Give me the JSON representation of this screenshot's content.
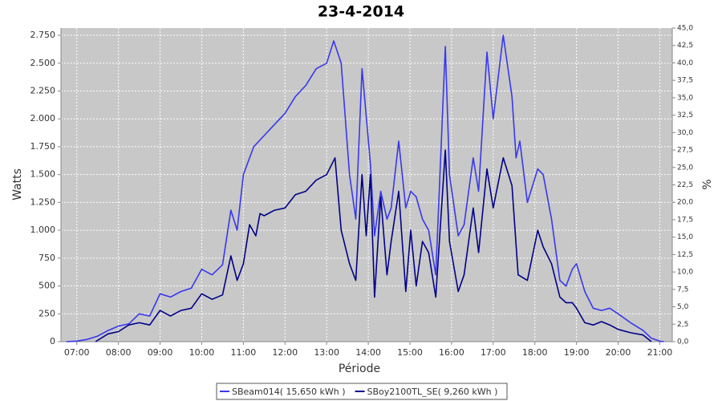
{
  "chart_data": {
    "type": "line",
    "title": "23-4-2014",
    "x_label": "Période",
    "y_label": "Watts",
    "y2_label": "%",
    "xlim": [
      6.62,
      21.3
    ],
    "xticks": [
      {
        "value": 7,
        "label": "07:00"
      },
      {
        "value": 8,
        "label": "08:00"
      },
      {
        "value": 9,
        "label": "09:00"
      },
      {
        "value": 10,
        "label": "10:00"
      },
      {
        "value": 11,
        "label": "11:00"
      },
      {
        "value": 12,
        "label": "12:00"
      },
      {
        "value": 13,
        "label": "13:00"
      },
      {
        "value": 14,
        "label": "14:00"
      },
      {
        "value": 15,
        "label": "15:00"
      },
      {
        "value": 16,
        "label": "16:00"
      },
      {
        "value": 17,
        "label": "17:00"
      },
      {
        "value": 18,
        "label": "18:00"
      },
      {
        "value": 19,
        "label": "19:00"
      },
      {
        "value": 20,
        "label": "20:00"
      },
      {
        "value": 21,
        "label": "21:00"
      }
    ],
    "ylim": [
      0,
      2815
    ],
    "yticks": [
      0,
      250,
      500,
      750,
      {
        "value": 1000,
        "label": "1.000"
      },
      {
        "value": 1250,
        "label": "1.250"
      },
      {
        "value": 1500,
        "label": "1.500"
      },
      {
        "value": 1750,
        "label": "1.750"
      },
      {
        "value": 2000,
        "label": "2.000"
      },
      {
        "value": 2250,
        "label": "2.250"
      },
      {
        "value": 2500,
        "label": "2.500"
      },
      {
        "value": 2750,
        "label": "2.750"
      }
    ],
    "y2lim": [
      0,
      45
    ],
    "y2ticks": [
      {
        "value": 0,
        "label": "0,0"
      },
      {
        "value": 2.5,
        "label": "2,5"
      },
      {
        "value": 5,
        "label": "5,0"
      },
      {
        "value": 7.5,
        "label": "7,5"
      },
      {
        "value": 10,
        "label": "10,0"
      },
      {
        "value": 12.5,
        "label": "12,5"
      },
      {
        "value": 15,
        "label": "15,0"
      },
      {
        "value": 17.5,
        "label": "17,5"
      },
      {
        "value": 20,
        "label": "20,0"
      },
      {
        "value": 22.5,
        "label": "22,5"
      },
      {
        "value": 25,
        "label": "25,0"
      },
      {
        "value": 27.5,
        "label": "27,5"
      },
      {
        "value": 30,
        "label": "30,0"
      },
      {
        "value": 32.5,
        "label": "32,5"
      },
      {
        "value": 35,
        "label": "35,0"
      },
      {
        "value": 37.5,
        "label": "37,5"
      },
      {
        "value": 40,
        "label": "40,0"
      },
      {
        "value": 42.5,
        "label": "42,5"
      },
      {
        "value": 45,
        "label": "45,0"
      }
    ],
    "grid": true,
    "legend": "bottom",
    "series": [
      {
        "name": "SBeam014( 15,650 kWh )",
        "color": "#3838ee",
        "x": [
          6.75,
          7.0,
          7.25,
          7.5,
          7.75,
          8.0,
          8.25,
          8.5,
          8.75,
          9.0,
          9.25,
          9.5,
          9.75,
          10.0,
          10.25,
          10.5,
          10.7,
          10.85,
          11.0,
          11.25,
          11.5,
          11.75,
          12.0,
          12.25,
          12.5,
          12.75,
          13.0,
          13.17,
          13.35,
          13.55,
          13.7,
          13.85,
          14.05,
          14.15,
          14.3,
          14.45,
          14.55,
          14.73,
          14.9,
          15.02,
          15.15,
          15.3,
          15.45,
          15.62,
          15.85,
          15.95,
          16.16,
          16.3,
          16.52,
          16.65,
          16.85,
          17.0,
          17.24,
          17.45,
          17.55,
          17.64,
          17.82,
          18.07,
          18.2,
          18.4,
          18.6,
          18.75,
          18.9,
          19.0,
          19.2,
          19.4,
          19.6,
          19.8,
          20.0,
          20.3,
          20.6,
          20.8,
          21.0,
          21.1
        ],
        "values": [
          0,
          5,
          20,
          50,
          100,
          140,
          160,
          250,
          230,
          430,
          400,
          450,
          480,
          650,
          600,
          690,
          1180,
          1000,
          1500,
          1750,
          1850,
          1950,
          2050,
          2200,
          2300,
          2450,
          2500,
          2700,
          2500,
          1500,
          1100,
          2450,
          1600,
          950,
          1350,
          1100,
          1200,
          1800,
          1200,
          1350,
          1300,
          1100,
          1000,
          600,
          2650,
          1500,
          950,
          1050,
          1650,
          1350,
          2600,
          2000,
          2750,
          2200,
          1650,
          1800,
          1250,
          1550,
          1500,
          1100,
          550,
          500,
          650,
          700,
          450,
          300,
          280,
          300,
          250,
          170,
          100,
          30,
          5,
          0
        ]
      },
      {
        "name": "SBoy2100TL_SE( 9,260 kWh )",
        "color": "#000088",
        "x": [
          7.45,
          7.75,
          8.0,
          8.25,
          8.5,
          8.75,
          9.0,
          9.25,
          9.5,
          9.75,
          10.0,
          10.25,
          10.5,
          10.7,
          10.85,
          11.0,
          11.15,
          11.3,
          11.4,
          11.5,
          11.75,
          12.0,
          12.25,
          12.5,
          12.75,
          13.0,
          13.2,
          13.35,
          13.55,
          13.7,
          13.85,
          13.95,
          14.05,
          14.15,
          14.3,
          14.45,
          14.55,
          14.73,
          14.9,
          15.02,
          15.15,
          15.3,
          15.45,
          15.62,
          15.85,
          15.95,
          16.16,
          16.3,
          16.52,
          16.65,
          16.85,
          17.0,
          17.24,
          17.45,
          17.6,
          17.82,
          18.07,
          18.2,
          18.4,
          18.6,
          18.75,
          18.9,
          19.0,
          19.2,
          19.4,
          19.6,
          19.8,
          20.0,
          20.3,
          20.6,
          20.8
        ],
        "values": [
          0,
          70,
          90,
          150,
          170,
          150,
          280,
          230,
          280,
          300,
          430,
          380,
          420,
          770,
          550,
          700,
          1050,
          950,
          1150,
          1130,
          1180,
          1200,
          1320,
          1350,
          1450,
          1500,
          1650,
          1000,
          700,
          550,
          1500,
          950,
          1500,
          400,
          1300,
          600,
          900,
          1350,
          450,
          1000,
          500,
          900,
          800,
          400,
          1720,
          900,
          450,
          600,
          1200,
          800,
          1550,
          1200,
          1650,
          1400,
          600,
          550,
          1000,
          850,
          700,
          400,
          350,
          350,
          300,
          170,
          150,
          180,
          150,
          110,
          80,
          60,
          0
        ]
      }
    ]
  }
}
